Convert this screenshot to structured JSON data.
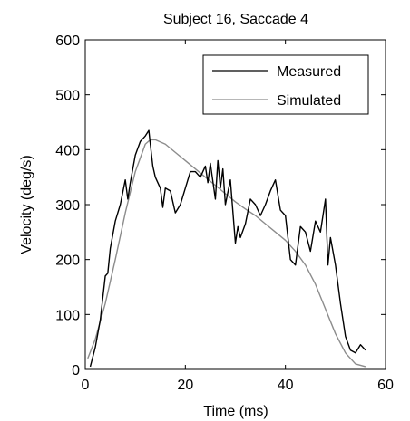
{
  "chart_data": {
    "type": "line",
    "title": "Subject 16, Saccade 4",
    "xlabel": "Time (ms)",
    "ylabel": "Velocity (deg/s)",
    "xlim": [
      0,
      60
    ],
    "ylim": [
      0,
      600
    ],
    "xticks": [
      "0",
      "20",
      "40",
      "60"
    ],
    "yticks": [
      "0",
      "100",
      "200",
      "300",
      "400",
      "500",
      "600"
    ],
    "grid": false,
    "legend_position": "top-right",
    "series": [
      {
        "name": "Measured",
        "color": "#000000",
        "points": [
          [
            1.0,
            5
          ],
          [
            2.0,
            40
          ],
          [
            3.0,
            90
          ],
          [
            4.0,
            170
          ],
          [
            4.5,
            175
          ],
          [
            5.0,
            220
          ],
          [
            6.0,
            270
          ],
          [
            7.0,
            300
          ],
          [
            8.0,
            345
          ],
          [
            8.5,
            310
          ],
          [
            9.0,
            340
          ],
          [
            10.0,
            390
          ],
          [
            11.0,
            415
          ],
          [
            12.0,
            425
          ],
          [
            12.7,
            435
          ],
          [
            13.0,
            410
          ],
          [
            13.5,
            370
          ],
          [
            14.0,
            350
          ],
          [
            15.0,
            330
          ],
          [
            15.5,
            295
          ],
          [
            16.0,
            330
          ],
          [
            17.0,
            325
          ],
          [
            18.0,
            285
          ],
          [
            19.0,
            300
          ],
          [
            20.0,
            330
          ],
          [
            21.0,
            360
          ],
          [
            22.0,
            360
          ],
          [
            23.0,
            350
          ],
          [
            24.0,
            370
          ],
          [
            24.5,
            340
          ],
          [
            25.0,
            375
          ],
          [
            26.0,
            310
          ],
          [
            26.5,
            380
          ],
          [
            27.0,
            330
          ],
          [
            27.5,
            365
          ],
          [
            28.0,
            300
          ],
          [
            29.0,
            345
          ],
          [
            30.0,
            230
          ],
          [
            30.5,
            260
          ],
          [
            31.0,
            240
          ],
          [
            32.0,
            265
          ],
          [
            33.0,
            310
          ],
          [
            34.0,
            300
          ],
          [
            35.0,
            280
          ],
          [
            36.0,
            300
          ],
          [
            37.0,
            325
          ],
          [
            38.0,
            345
          ],
          [
            39.0,
            290
          ],
          [
            40.0,
            280
          ],
          [
            41.0,
            200
          ],
          [
            42.0,
            190
          ],
          [
            43.0,
            260
          ],
          [
            44.0,
            250
          ],
          [
            45.0,
            215
          ],
          [
            46.0,
            270
          ],
          [
            47.0,
            250
          ],
          [
            48.0,
            310
          ],
          [
            48.5,
            190
          ],
          [
            49.0,
            240
          ],
          [
            50.0,
            190
          ],
          [
            51.0,
            120
          ],
          [
            52.0,
            60
          ],
          [
            53.0,
            35
          ],
          [
            54.0,
            30
          ],
          [
            55.0,
            45
          ],
          [
            56.0,
            35
          ]
        ]
      },
      {
        "name": "Simulated",
        "color": "#8c8c8c",
        "points": [
          [
            0.5,
            20
          ],
          [
            2.0,
            55
          ],
          [
            4.0,
            120
          ],
          [
            6.0,
            200
          ],
          [
            8.0,
            285
          ],
          [
            10.0,
            360
          ],
          [
            12.0,
            410
          ],
          [
            13.0,
            418
          ],
          [
            14.0,
            418
          ],
          [
            16.0,
            410
          ],
          [
            18.0,
            395
          ],
          [
            20.0,
            380
          ],
          [
            22.0,
            365
          ],
          [
            24.0,
            350
          ],
          [
            26.0,
            335
          ],
          [
            28.0,
            320
          ],
          [
            30.0,
            305
          ],
          [
            32.0,
            292
          ],
          [
            34.0,
            280
          ],
          [
            36.0,
            265
          ],
          [
            38.0,
            250
          ],
          [
            40.0,
            235
          ],
          [
            42.0,
            215
          ],
          [
            44.0,
            190
          ],
          [
            46.0,
            155
          ],
          [
            48.0,
            110
          ],
          [
            50.0,
            65
          ],
          [
            52.0,
            30
          ],
          [
            54.0,
            10
          ],
          [
            56.0,
            5
          ]
        ]
      }
    ]
  }
}
